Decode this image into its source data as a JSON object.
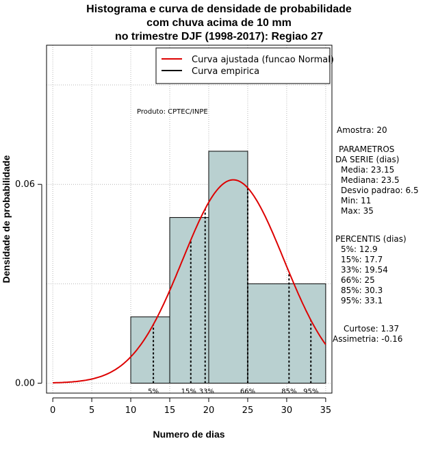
{
  "chart_data": {
    "type": "bar",
    "title": [
      "Histograma e curva de densidade de probabilidade",
      "com chuva acima de 10 mm",
      "no trimestre DJF (1998-2017): Regiao 27"
    ],
    "xlabel": "Numero de dias",
    "ylabel": "Densidade de probabilidade",
    "xlim": [
      -0.8,
      35.8
    ],
    "ylim": [
      -0.003,
      0.102
    ],
    "xticks": [
      "0",
      "5",
      "10",
      "15",
      "20",
      "25",
      "30",
      "35"
    ],
    "yticks": [
      "0.00",
      "0.06"
    ],
    "grid_x": [
      0,
      5,
      10,
      15,
      20,
      25,
      30,
      35
    ],
    "grid_y": [
      0.0,
      0.03,
      0.06,
      0.09
    ],
    "bins": [
      {
        "x0": 10,
        "x1": 15,
        "density": 0.02
      },
      {
        "x0": 15,
        "x1": 20,
        "density": 0.05
      },
      {
        "x0": 20,
        "x1": 25,
        "density": 0.07
      },
      {
        "x0": 25,
        "x1": 35,
        "density": 0.03
      }
    ],
    "fitted_curve": {
      "label": "Curva ajustada (funcao Normal)",
      "mean": 23.15,
      "sd": 6.5,
      "x_range": [
        0,
        35
      ],
      "color": "#dd0000"
    },
    "empirical_curve": {
      "label": "Curva empirica",
      "color": "#000000"
    },
    "bar_color": "#b9d0d0",
    "percentile_lines": [
      {
        "label": "5%",
        "x": 12.9
      },
      {
        "label": "15%",
        "x": 17.7
      },
      {
        "label": "33%",
        "x": 19.54
      },
      {
        "label": "66%",
        "x": 25
      },
      {
        "label": "85%",
        "x": 30.3
      },
      {
        "label": "95%",
        "x": 33.1
      }
    ],
    "legend_position": "top-right",
    "credit": "Produto: CPTEC/INPE"
  },
  "stats": {
    "amostra": "Amostra: 20",
    "parametros": [
      "PARAMETROS",
      "DA SERIE (dias)",
      "Media: 23.15",
      "Mediana: 23.5",
      "Desvio padrao: 6.5",
      "Min: 11",
      "Max: 35"
    ],
    "percentis": [
      "PERCENTIS (dias)",
      "5%: 12.9",
      "15%: 17.7",
      "33%: 19.54",
      "66%: 25",
      "85%: 30.3",
      "95%: 33.1"
    ],
    "shape": [
      "Curtose: 1.37",
      "Assimetria: -0.16"
    ]
  }
}
